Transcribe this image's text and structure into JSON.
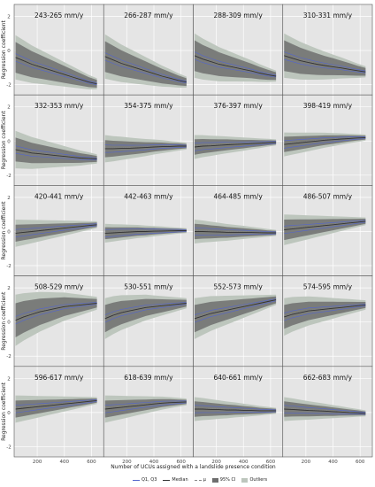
{
  "chart_data": {
    "type": "line",
    "layout": "facet-grid-4x5",
    "ylabel": "Regression coefficient",
    "xlabel": "Number of UCUs assigned with a landslide presence condition",
    "x_ticks": [
      200,
      400,
      600
    ],
    "xlim": [
      30,
      690
    ],
    "y_ticks": [
      2,
      0,
      -2
    ],
    "ylim": [
      -2.6,
      2.7
    ],
    "x": [
      40,
      100,
      160,
      220,
      280,
      340,
      400,
      460,
      520,
      580,
      640
    ],
    "grid": true,
    "panels": [
      {
        "title": "243-265 mm/y",
        "median": [
          -0.4,
          -0.6,
          -0.8,
          -0.95,
          -1.1,
          -1.25,
          -1.4,
          -1.55,
          -1.7,
          -1.85,
          -1.95
        ],
        "ci_start": 0.9,
        "outlier_start": 1.3
      },
      {
        "title": "266-287 mm/y",
        "median": [
          -0.35,
          -0.55,
          -0.75,
          -0.9,
          -1.05,
          -1.2,
          -1.35,
          -1.5,
          -1.62,
          -1.75,
          -1.85
        ],
        "ci_start": 0.9,
        "outlier_start": 1.3
      },
      {
        "title": "288-309 mm/y",
        "median": [
          -0.3,
          -0.5,
          -0.65,
          -0.8,
          -0.9,
          -1.0,
          -1.1,
          -1.2,
          -1.32,
          -1.42,
          -1.5
        ],
        "ci_start": 0.9,
        "outlier_start": 1.3
      },
      {
        "title": "310-331 mm/y",
        "median": [
          -0.3,
          -0.45,
          -0.6,
          -0.7,
          -0.8,
          -0.88,
          -0.95,
          -1.02,
          -1.1,
          -1.18,
          -1.25
        ],
        "ci_start": 0.9,
        "outlier_start": 1.3
      },
      {
        "title": "332-353 mm/y",
        "median": [
          -0.5,
          -0.6,
          -0.7,
          -0.75,
          -0.8,
          -0.85,
          -0.9,
          -0.95,
          -1.0,
          -1.02,
          -1.05
        ],
        "ci_start": 0.7,
        "outlier_start": 1.1
      },
      {
        "title": "354-375 mm/y",
        "median": [
          -0.45,
          -0.45,
          -0.43,
          -0.42,
          -0.4,
          -0.38,
          -0.35,
          -0.33,
          -0.32,
          -0.3,
          -0.3
        ],
        "ci_start": 0.5,
        "outlier_start": 0.8
      },
      {
        "title": "376-397 mm/y",
        "median": [
          -0.35,
          -0.3,
          -0.28,
          -0.25,
          -0.22,
          -0.2,
          -0.18,
          -0.15,
          -0.13,
          -0.1,
          -0.08
        ],
        "ci_start": 0.45,
        "outlier_start": 0.7
      },
      {
        "title": "398-419 mm/y",
        "median": [
          -0.2,
          -0.15,
          -0.1,
          -0.05,
          0.0,
          0.05,
          0.08,
          0.12,
          0.15,
          0.18,
          0.2
        ],
        "ci_start": 0.45,
        "outlier_start": 0.7
      },
      {
        "title": "420-441 mm/y",
        "median": [
          -0.1,
          -0.05,
          0.0,
          0.05,
          0.1,
          0.15,
          0.2,
          0.25,
          0.3,
          0.35,
          0.4
        ],
        "ci_start": 0.5,
        "outlier_start": 0.8
      },
      {
        "title": "442-463 mm/y",
        "median": [
          -0.1,
          -0.08,
          -0.05,
          -0.03,
          0.0,
          0.0,
          0.02,
          0.03,
          0.04,
          0.05,
          0.05
        ],
        "ci_start": 0.35,
        "outlier_start": 0.55
      },
      {
        "title": "464-485 mm/y",
        "median": [
          0.0,
          0.0,
          -0.02,
          -0.03,
          -0.05,
          -0.05,
          -0.05,
          -0.06,
          -0.07,
          -0.08,
          -0.08
        ],
        "ci_start": 0.45,
        "outlier_start": 0.7
      },
      {
        "title": "486-507 mm/y",
        "median": [
          0.1,
          0.15,
          0.2,
          0.25,
          0.3,
          0.35,
          0.4,
          0.45,
          0.5,
          0.55,
          0.6
        ],
        "ci_start": 0.6,
        "outlier_start": 0.9
      },
      {
        "title": "508-529 mm/y",
        "median": [
          0.1,
          0.3,
          0.45,
          0.6,
          0.7,
          0.8,
          0.9,
          0.95,
          1.0,
          1.05,
          1.1
        ],
        "ci_start": 1.0,
        "outlier_start": 1.5
      },
      {
        "title": "530-551 mm/y",
        "median": [
          0.2,
          0.4,
          0.55,
          0.65,
          0.75,
          0.85,
          0.9,
          0.95,
          1.0,
          1.05,
          1.1
        ],
        "ci_start": 0.8,
        "outlier_start": 1.2
      },
      {
        "title": "552-573 mm/y",
        "median": [
          0.2,
          0.35,
          0.5,
          0.6,
          0.7,
          0.8,
          0.9,
          1.0,
          1.1,
          1.2,
          1.3
        ],
        "ci_start": 0.8,
        "outlier_start": 1.2
      },
      {
        "title": "574-595 mm/y",
        "median": [
          0.3,
          0.45,
          0.55,
          0.65,
          0.7,
          0.75,
          0.8,
          0.85,
          0.9,
          0.95,
          1.0
        ],
        "ci_start": 0.7,
        "outlier_start": 1.1
      },
      {
        "title": "596-617 mm/y",
        "median": [
          0.2,
          0.25,
          0.3,
          0.35,
          0.4,
          0.45,
          0.5,
          0.55,
          0.6,
          0.65,
          0.7
        ],
        "ci_start": 0.5,
        "outlier_start": 0.8
      },
      {
        "title": "618-639 mm/y",
        "median": [
          0.2,
          0.25,
          0.3,
          0.35,
          0.4,
          0.45,
          0.5,
          0.55,
          0.58,
          0.6,
          0.62
        ],
        "ci_start": 0.5,
        "outlier_start": 0.8
      },
      {
        "title": "640-661 mm/y",
        "median": [
          0.2,
          0.2,
          0.18,
          0.17,
          0.15,
          0.15,
          0.13,
          0.12,
          0.1,
          0.1,
          0.1
        ],
        "ci_start": 0.45,
        "outlier_start": 0.7
      },
      {
        "title": "662-683 mm/y",
        "median": [
          0.2,
          0.18,
          0.15,
          0.12,
          0.1,
          0.08,
          0.05,
          0.03,
          0.0,
          -0.02,
          -0.05
        ],
        "ci_start": 0.45,
        "outlier_start": 0.7
      }
    ],
    "legend": {
      "placement": "bottom-center",
      "items": [
        {
          "label": "Q1, Q3",
          "kind": "line",
          "color": "#5566cc"
        },
        {
          "label": "Median",
          "kind": "line",
          "color": "#333333"
        },
        {
          "label": "μ",
          "kind": "dashed",
          "color": "#888888"
        },
        {
          "label": "95% CI",
          "kind": "box",
          "color": "#6e6e6e"
        },
        {
          "label": "Outliers",
          "kind": "box",
          "color": "#bdc6bd"
        }
      ]
    },
    "colors": {
      "panel_bg": "#e5e5e5",
      "grid": "#ffffff",
      "outliers": "#bdc6bd",
      "ci": "#6e6e6e",
      "quartiles": "#5566cc",
      "median": "#333333",
      "mean": "#888888"
    }
  }
}
